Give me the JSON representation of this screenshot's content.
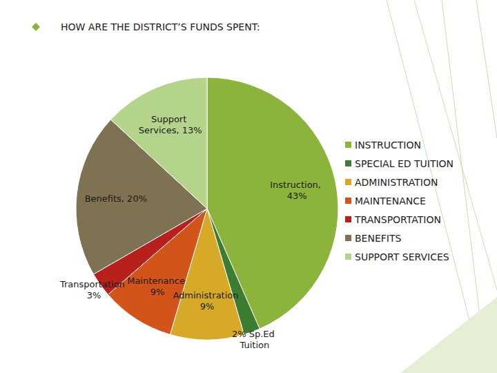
{
  "chart_data": {
    "type": "pie",
    "title": "HOW ARE THE DISTRICT’S FUNDS SPENT:",
    "categories": [
      "INSTRUCTION",
      "SPECIAL ED TUITION",
      "ADMINISTRATION",
      "MAINTENANCE",
      "TRANSPORTATION",
      "BENEFITS",
      "SUPPORT SERVICES"
    ],
    "values": [
      43,
      2,
      9,
      9,
      3,
      20,
      13
    ],
    "value_labels": [
      "Instruction, 43%",
      "2% Sp.Ed Tuition",
      "Administration 9%",
      "Maintenance 9%",
      "Transportation 3%",
      "Benefits, 20%",
      "Support Services, 13%"
    ],
    "colors": [
      "#8cb43c",
      "#3c7d32",
      "#d7a928",
      "#d2541a",
      "#b8201e",
      "#7e7252",
      "#b4d48c"
    ],
    "legend": "right",
    "data_labels": true
  }
}
